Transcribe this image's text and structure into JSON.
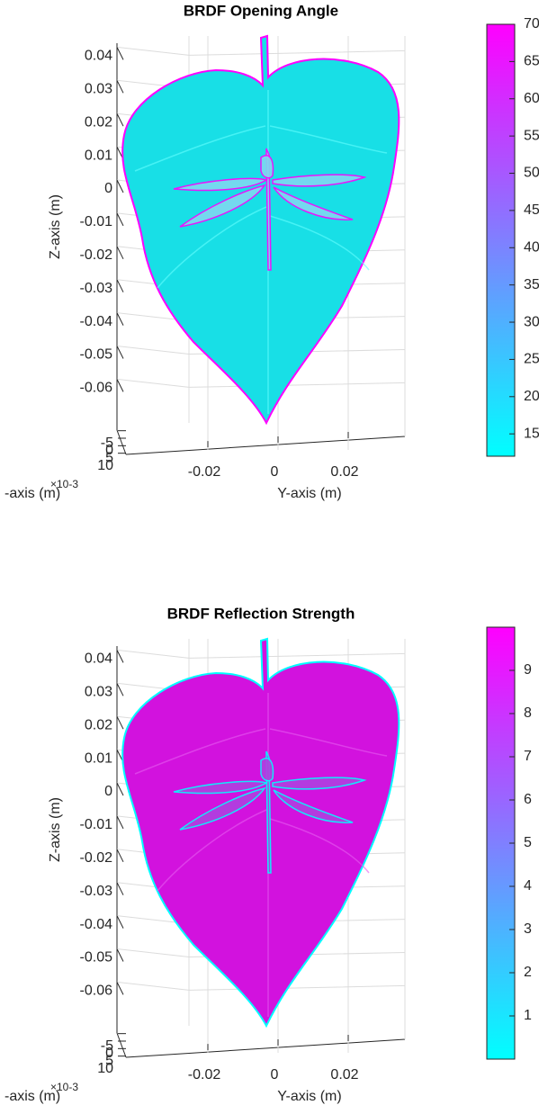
{
  "chart_data": [
    {
      "type": "surface",
      "title": "BRDF Opening Angle",
      "xlabel": "-axis (m)",
      "ylabel": "Y-axis (m)",
      "zlabel": "Z-axis (m)",
      "x_exponent": "×10-3",
      "xticks": [
        {
          "value": -0.005,
          "label": "-5"
        },
        {
          "value": 0,
          "label": "0"
        },
        {
          "value": 0.005,
          "label": "5"
        },
        {
          "value": 0.01,
          "label": "10"
        }
      ],
      "yticks": [
        -0.02,
        0,
        0.02
      ],
      "zticks": [
        0.04,
        0.03,
        0.02,
        0.01,
        0,
        -0.01,
        -0.02,
        -0.03,
        -0.04,
        -0.05,
        -0.06
      ],
      "colormap": [
        "#00ffff",
        "#ff00ff"
      ],
      "clim": [
        12,
        70
      ],
      "cticks": [
        15,
        20,
        25,
        30,
        35,
        40,
        45,
        50,
        55,
        60,
        65,
        70
      ],
      "grid": true
    },
    {
      "type": "surface",
      "title": "BRDF Reflection Strength",
      "xlabel": "-axis (m)",
      "ylabel": "Y-axis (m)",
      "zlabel": "Z-axis (m)",
      "x_exponent": "×10-3",
      "xticks": [
        {
          "value": -0.005,
          "label": "-5"
        },
        {
          "value": 0,
          "label": "0"
        },
        {
          "value": 0.005,
          "label": "5"
        },
        {
          "value": 0.01,
          "label": "10"
        }
      ],
      "yticks": [
        -0.02,
        0,
        0.02
      ],
      "zticks": [
        0.04,
        0.03,
        0.02,
        0.01,
        0,
        -0.01,
        -0.02,
        -0.03,
        -0.04,
        -0.05,
        -0.06
      ],
      "colormap": [
        "#00ffff",
        "#ff00ff"
      ],
      "clim": [
        0,
        10
      ],
      "cticks": [
        1,
        2,
        3,
        4,
        5,
        6,
        7,
        8,
        9
      ],
      "grid": true
    }
  ]
}
